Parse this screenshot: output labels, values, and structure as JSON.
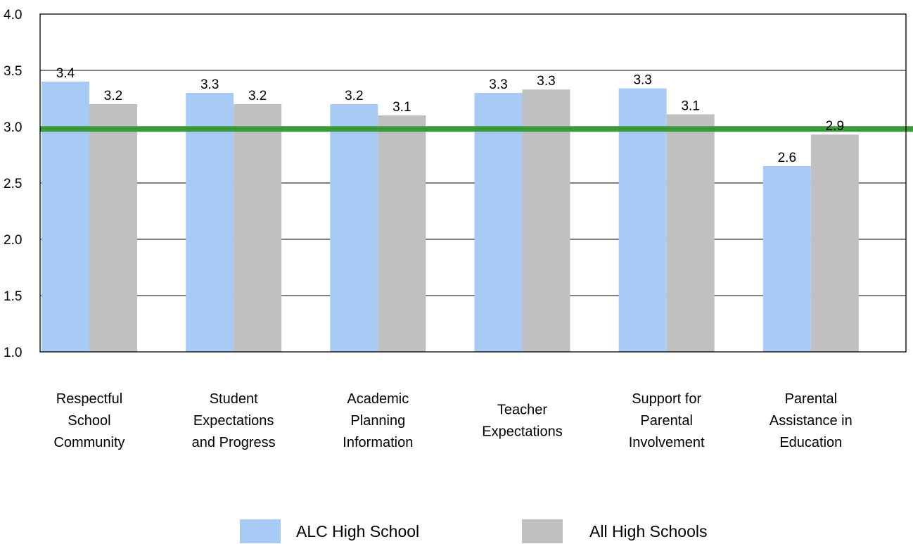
{
  "chart_data": {
    "type": "bar",
    "categories": [
      [
        "Respectful",
        "School",
        "Community"
      ],
      [
        "Student",
        "Expectations",
        "and Progress"
      ],
      [
        "Academic",
        "Planning",
        "Information"
      ],
      [
        "Teacher",
        "Expectations"
      ],
      [
        "Support for",
        "Parental",
        "Involvement"
      ],
      [
        "Parental",
        "Assistance in",
        "Education"
      ]
    ],
    "series": [
      {
        "name": "ALC High School",
        "color": "#a8cbf5",
        "values": [
          3.4,
          3.3,
          3.2,
          3.3,
          3.34,
          2.65
        ],
        "labels": [
          "3.4",
          "3.3",
          "3.2",
          "3.3",
          "3.3",
          "2.6"
        ]
      },
      {
        "name": "All High Schools",
        "color": "#c0c0c0",
        "values": [
          3.2,
          3.2,
          3.1,
          3.33,
          3.11,
          2.93
        ],
        "labels": [
          "3.2",
          "3.2",
          "3.1",
          "3.3",
          "3.1",
          "2.9"
        ]
      }
    ],
    "yticks": [
      "1.0",
      "1.5",
      "2.0",
      "2.5",
      "3.0",
      "3.5",
      "4.0"
    ],
    "ylim": [
      1.0,
      4.0
    ],
    "reference_line": {
      "value": 2.98,
      "color": "#3a9a3a"
    },
    "grid": true,
    "legend_position": "bottom-center"
  }
}
